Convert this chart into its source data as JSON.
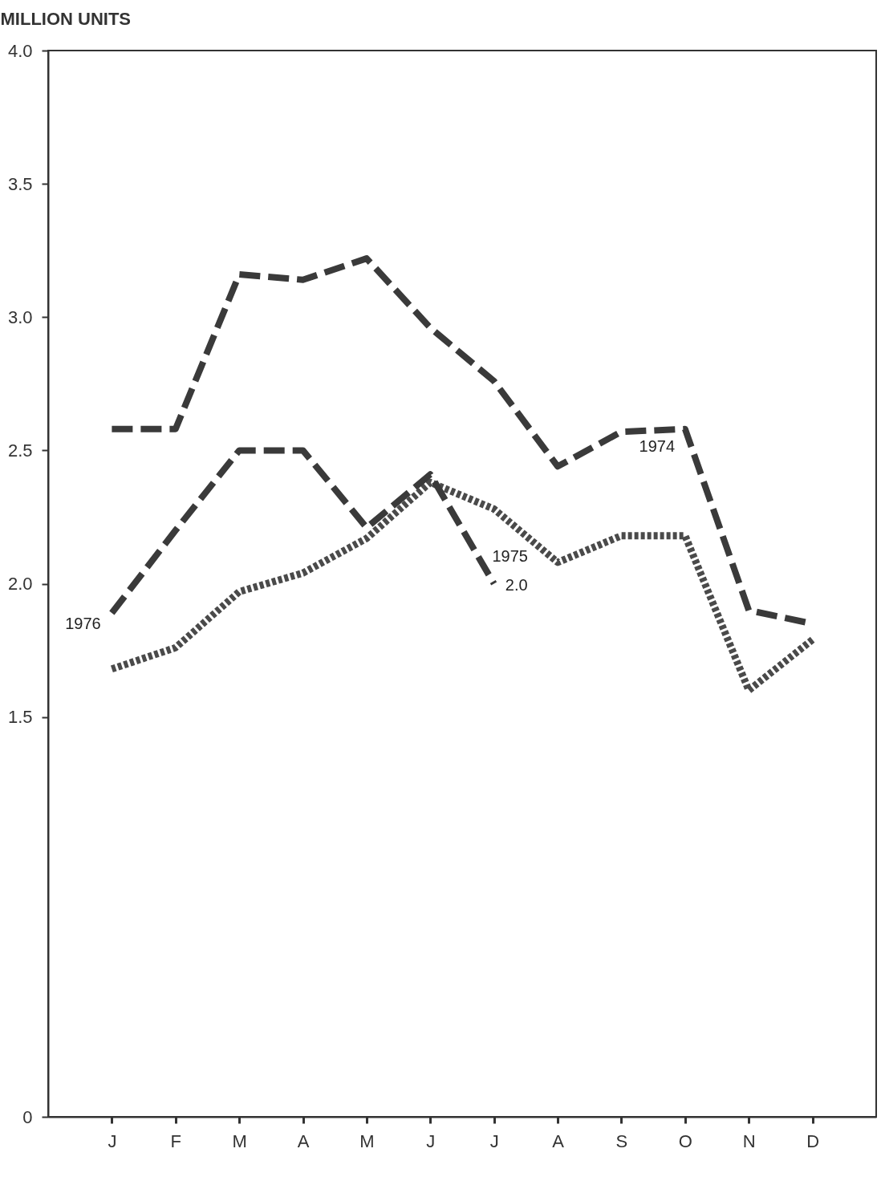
{
  "chart_data": {
    "type": "line",
    "ylabel": "MILLION UNITS",
    "categories": [
      "J",
      "F",
      "M",
      "A",
      "M",
      "J",
      "J",
      "A",
      "S",
      "O",
      "N",
      "D"
    ],
    "ylim": [
      0,
      4.0
    ],
    "yticks": [
      0,
      {
        "value": 1.5,
        "label": "1.5"
      },
      {
        "value": 2.0,
        "label": "2.0"
      },
      {
        "value": 2.5,
        "label": "2.5"
      },
      {
        "value": 3.0,
        "label": "3.0"
      },
      {
        "value": 3.5,
        "label": "3.5"
      },
      {
        "value": 4.0,
        "label": "4.0"
      }
    ],
    "series": [
      {
        "name": "1974",
        "color": "#3a3a3a",
        "line_style": "dashed",
        "values": [
          2.58,
          2.58,
          3.16,
          3.14,
          3.22,
          2.96,
          2.76,
          2.44,
          2.57,
          2.58,
          1.9,
          1.85
        ]
      },
      {
        "name": "1975",
        "color": "#4a4a4a",
        "line_style": "dotted",
        "values": [
          1.68,
          1.76,
          1.97,
          2.04,
          2.17,
          2.38,
          2.28,
          2.08,
          2.18,
          2.18,
          1.6,
          1.79
        ]
      },
      {
        "name": "1976",
        "color": "#3a3a3a",
        "line_style": "dashed",
        "values": [
          1.89,
          2.2,
          2.5,
          2.5,
          2.21,
          2.41,
          2.0,
          null,
          null,
          null,
          null,
          null
        ],
        "value_labels": [
          null,
          null,
          null,
          null,
          null,
          null,
          "2.0",
          null,
          null,
          null,
          null,
          null
        ]
      }
    ],
    "grid": false,
    "legend": false
  }
}
